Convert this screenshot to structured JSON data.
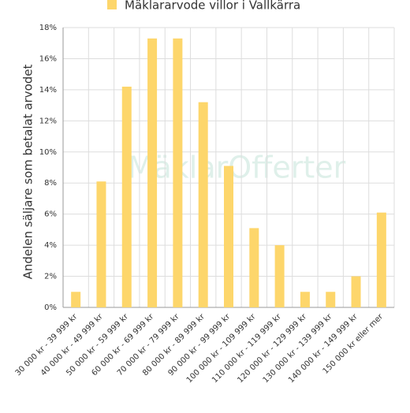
{
  "chart_data": {
    "type": "bar",
    "title": "Mäklararvode villor i Vallkärra",
    "y_label": "Andelen säljare som betalat arvodet",
    "watermark": "MäklarOfferter",
    "categories": [
      "30 000 kr - 39 999 kr",
      "40 000 kr - 49 999 kr",
      "50 000 kr - 59 999 kr",
      "60 000 kr - 69 999 kr",
      "70 000 kr - 79 999 kr",
      "80 000 kr - 89 999 kr",
      "90 000 kr - 99 999 kr",
      "100 000 kr - 109 999 kr",
      "110 000 kr - 119 999 kr",
      "120 000 kr - 129 999 kr",
      "130 000 kr - 139 999 kr",
      "140 000 kr - 149 999 kr",
      "150 000 kr eller mer"
    ],
    "series": [
      {
        "name": "Mäklararvode villor i Vallkärra",
        "color": "#fdd66b",
        "values": [
          1,
          8.1,
          14.2,
          17.3,
          17.3,
          13.2,
          9.1,
          5.1,
          4.0,
          1,
          1,
          2,
          6.1
        ]
      }
    ],
    "ylim": [
      0,
      18
    ],
    "yticks": [
      {
        "value": 0,
        "label": "0%"
      },
      {
        "value": 2,
        "label": "2%"
      },
      {
        "value": 4,
        "label": "4%"
      },
      {
        "value": 6,
        "label": "6%"
      },
      {
        "value": 8,
        "label": "8%"
      },
      {
        "value": 10,
        "label": "10%"
      },
      {
        "value": 12,
        "label": "12%"
      },
      {
        "value": 14,
        "label": "14%"
      },
      {
        "value": 16,
        "label": "16%"
      },
      {
        "value": 18,
        "label": "18%"
      }
    ],
    "grid": true
  }
}
